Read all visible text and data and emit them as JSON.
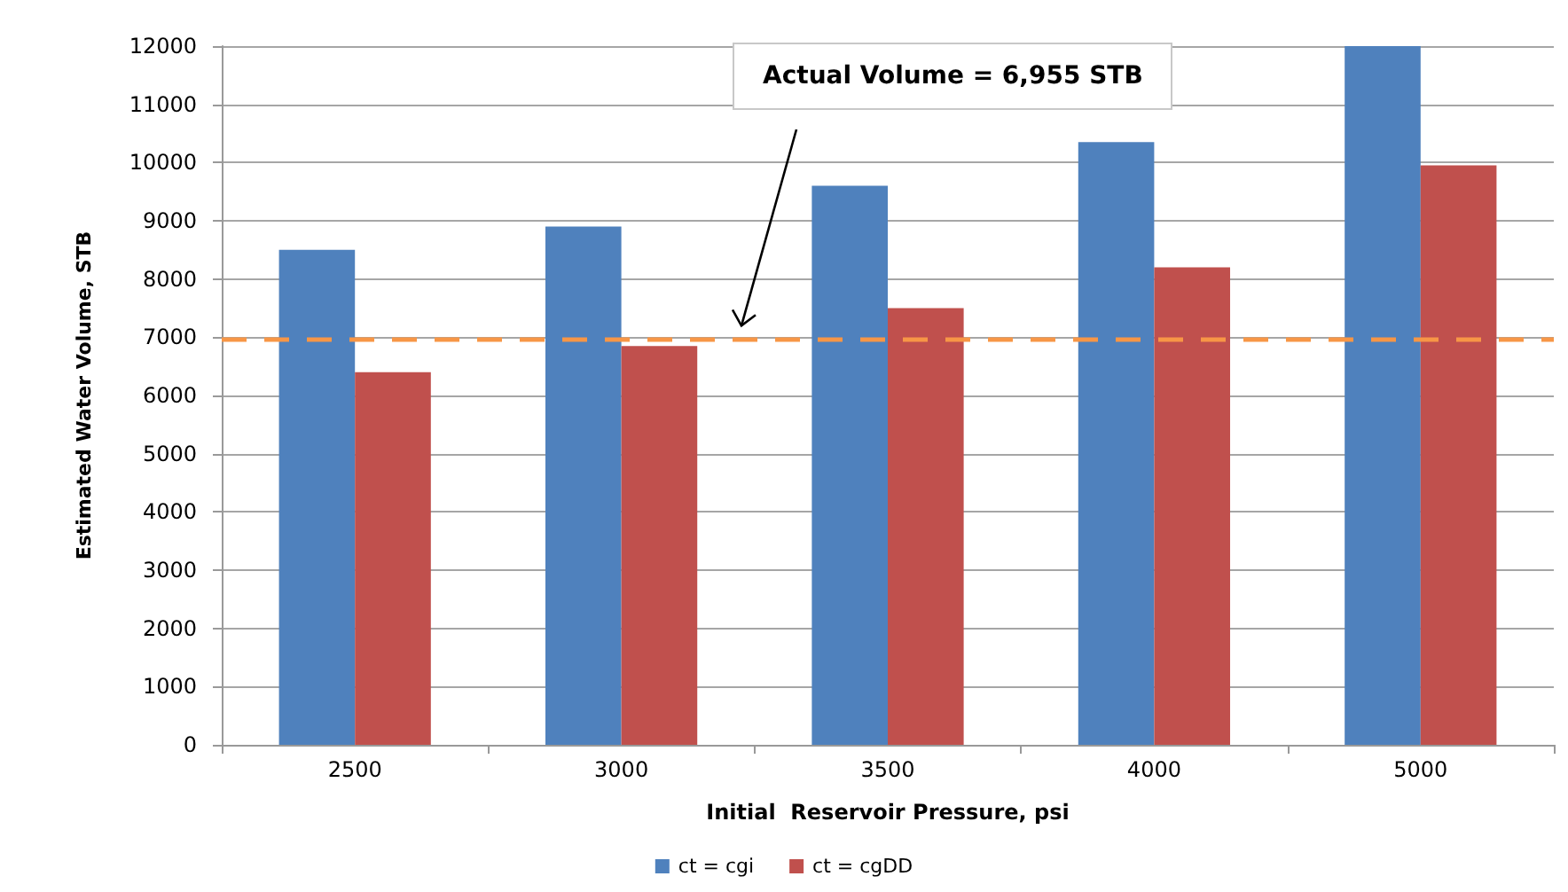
{
  "chart_data": {
    "type": "bar",
    "xlabel": "Initial  Reservoir Pressure, psi",
    "ylabel": "Estimated Water Volume, STB",
    "categories": [
      "2500",
      "3000",
      "3500",
      "4000",
      "5000"
    ],
    "series": [
      {
        "name": "ct = cgi",
        "color": "#4f81bd",
        "values": [
          8500,
          8900,
          9600,
          10350,
          12000
        ]
      },
      {
        "name": "ct = cgDD",
        "color": "#c0504d",
        "values": [
          6400,
          6850,
          7500,
          8200,
          9950
        ]
      }
    ],
    "ylim": [
      0,
      12000
    ],
    "yticks": [
      0,
      1000,
      2000,
      3000,
      4000,
      5000,
      6000,
      7000,
      8000,
      9000,
      10000,
      11000,
      12000
    ],
    "grid": "y",
    "legend": "bottom",
    "annotations": [
      "Actual Volume = 6,955 STB"
    ],
    "ref_lines": [
      {
        "axis": "y",
        "value": 6955,
        "color": "#f79646",
        "line_style": "dashed"
      }
    ]
  }
}
